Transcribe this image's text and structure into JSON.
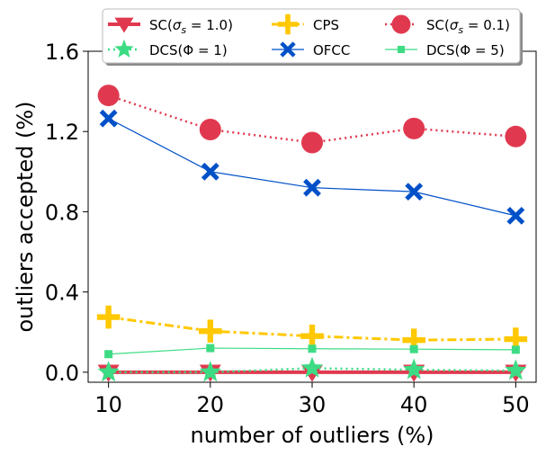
{
  "chart_data": {
    "type": "line",
    "title": "",
    "xlabel": "number of outliers (%)",
    "ylabel": "outliers accepted (%)",
    "x": [
      10,
      20,
      30,
      40,
      50
    ],
    "xlim": [
      8,
      52
    ],
    "ylim": [
      -0.05,
      1.6
    ],
    "xticks": [
      10,
      20,
      30,
      40,
      50
    ],
    "yticks": [
      "0.0",
      "0.4",
      "0.8",
      "1.2",
      "1.6"
    ],
    "grid": false,
    "legend_placement": "top-center, above plot, 3 columns",
    "series": [
      {
        "name": "SC(σs = 1.0)",
        "legend_main": "SC(",
        "legend_sym": "σ",
        "legend_sub": "s",
        "legend_rest": " = 1.0)",
        "values": [
          0.0,
          0.0,
          0.0,
          0.0,
          0.0
        ],
        "color": "#e0394f",
        "dash": "",
        "width": 4,
        "marker": "triangle-down"
      },
      {
        "name": "DCS(Φ = 1)",
        "values": [
          0.0,
          0.0,
          0.02,
          0.012,
          0.008
        ],
        "color": "#3ddc84",
        "dash": "2,4",
        "width": 2.5,
        "marker": "star"
      },
      {
        "name": "CPS",
        "values": [
          0.275,
          0.205,
          0.18,
          0.16,
          0.165
        ],
        "color": "#ffc800",
        "dash": "10,4,3,4",
        "width": 3,
        "marker": "plus"
      },
      {
        "name": "OFCC",
        "values": [
          1.265,
          1.0,
          0.92,
          0.9,
          0.78
        ],
        "color": "#0050c8",
        "dash": "",
        "width": 1.2,
        "marker": "x"
      },
      {
        "name": "SC(σs = 0.1)",
        "legend_main": "SC(",
        "legend_sym": "σ",
        "legend_sub": "s",
        "legend_rest": " = 0.1)",
        "values": [
          1.38,
          1.21,
          1.145,
          1.215,
          1.175
        ],
        "color": "#e0394f",
        "dash": "2,4",
        "width": 2.5,
        "marker": "circle"
      },
      {
        "name": "DCS(Φ = 5)",
        "values": [
          0.09,
          0.12,
          0.117,
          0.115,
          0.112
        ],
        "color": "#3ddc84",
        "dash": "",
        "width": 1.2,
        "marker": "square"
      }
    ]
  }
}
